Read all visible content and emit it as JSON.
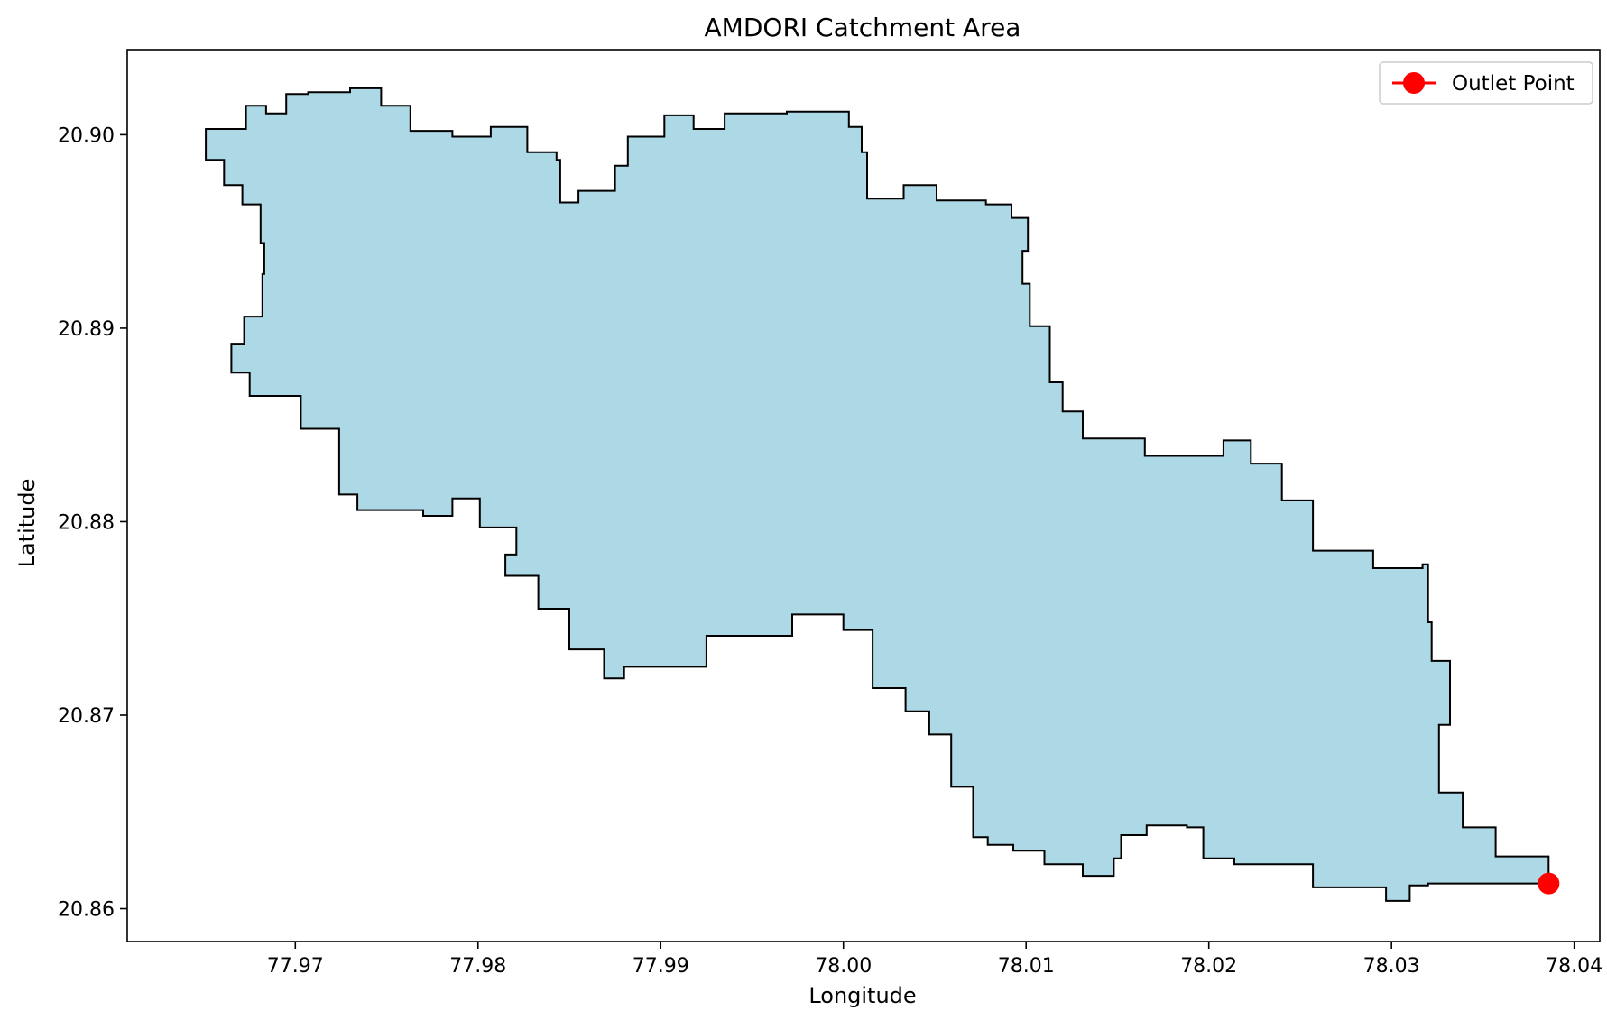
{
  "chart_data": {
    "type": "area",
    "title": "AMDORI Catchment Area",
    "xlabel": "Longitude",
    "ylabel": "Latitude",
    "xlim": [
      77.9608,
      78.0414
    ],
    "ylim": [
      20.8583,
      20.9044
    ],
    "x_ticks": [
      77.97,
      77.98,
      77.99,
      78.0,
      78.01,
      78.02,
      78.03,
      78.04
    ],
    "x_tick_labels": [
      "77.97",
      "77.98",
      "77.99",
      "78.00",
      "78.01",
      "78.02",
      "78.03",
      "78.04"
    ],
    "y_ticks": [
      20.86,
      20.87,
      20.88,
      20.89,
      20.9
    ],
    "y_tick_labels": [
      "20.86",
      "20.87",
      "20.88",
      "20.89",
      "20.90"
    ],
    "grid": false,
    "legend_position": "top-right",
    "colors": {
      "fill": "#add8e6",
      "outline": "#000000",
      "outlet": "#ff0000"
    },
    "series": [
      {
        "kind": "polygon",
        "points": [
          [
            77.9651,
            20.9003
          ],
          [
            77.9673,
            20.9015
          ],
          [
            77.9684,
            20.9011
          ],
          [
            77.9695,
            20.9021
          ],
          [
            77.9707,
            20.9022
          ],
          [
            77.973,
            20.9024
          ],
          [
            77.9747,
            20.9015
          ],
          [
            77.9763,
            20.9002
          ],
          [
            77.9786,
            20.8999
          ],
          [
            77.9807,
            20.9004
          ],
          [
            77.9827,
            20.8991
          ],
          [
            77.9843,
            20.8987
          ],
          [
            77.9845,
            20.8965
          ],
          [
            77.9855,
            20.8971
          ],
          [
            77.9875,
            20.8984
          ],
          [
            77.9882,
            20.8999
          ],
          [
            77.9902,
            20.901
          ],
          [
            77.9918,
            20.9003
          ],
          [
            77.9935,
            20.9011
          ],
          [
            77.9969,
            20.9012
          ],
          [
            78.0003,
            20.9004
          ],
          [
            78.001,
            20.8991
          ],
          [
            78.0013,
            20.8967
          ],
          [
            78.0033,
            20.8974
          ],
          [
            78.0051,
            20.8966
          ],
          [
            78.0078,
            20.8964
          ],
          [
            78.0092,
            20.8957
          ],
          [
            78.0101,
            20.894
          ],
          [
            78.0098,
            20.8923
          ],
          [
            78.0102,
            20.8901
          ],
          [
            78.0113,
            20.8872
          ],
          [
            78.012,
            20.8857
          ],
          [
            78.0131,
            20.8843
          ],
          [
            78.0165,
            20.8834
          ],
          [
            78.0208,
            20.8842
          ],
          [
            78.0223,
            20.883
          ],
          [
            78.024,
            20.8811
          ],
          [
            78.0257,
            20.8785
          ],
          [
            78.029,
            20.8776
          ],
          [
            78.0317,
            20.8778
          ],
          [
            78.032,
            20.8748
          ],
          [
            78.0322,
            20.8728
          ],
          [
            78.0332,
            20.8695
          ],
          [
            78.0326,
            20.866
          ],
          [
            78.0339,
            20.8642
          ],
          [
            78.0357,
            20.8627
          ],
          [
            78.0386,
            20.8613
          ],
          [
            78.032,
            20.8612
          ],
          [
            78.031,
            20.8604
          ],
          [
            78.0297,
            20.8611
          ],
          [
            78.0257,
            20.8623
          ],
          [
            78.0237,
            20.8623
          ],
          [
            78.0214,
            20.8626
          ],
          [
            78.0197,
            20.8642
          ],
          [
            78.0188,
            20.8643
          ],
          [
            78.0166,
            20.8638
          ],
          [
            78.0152,
            20.8626
          ],
          [
            78.0148,
            20.8617
          ],
          [
            78.0131,
            20.8623
          ],
          [
            78.011,
            20.863
          ],
          [
            78.0093,
            20.8633
          ],
          [
            78.0079,
            20.8637
          ],
          [
            78.0071,
            20.8663
          ],
          [
            78.0059,
            20.869
          ],
          [
            78.0047,
            20.8702
          ],
          [
            78.0034,
            20.8714
          ],
          [
            78.0016,
            20.8744
          ],
          [
            78.0,
            20.8752
          ],
          [
            77.9972,
            20.8741
          ],
          [
            77.9925,
            20.8725
          ],
          [
            77.988,
            20.8719
          ],
          [
            77.9869,
            20.8734
          ],
          [
            77.985,
            20.8755
          ],
          [
            77.9833,
            20.8772
          ],
          [
            77.9815,
            20.8783
          ],
          [
            77.9821,
            20.8797
          ],
          [
            77.9801,
            20.8812
          ],
          [
            77.9786,
            20.8803
          ],
          [
            77.977,
            20.8806
          ],
          [
            77.9742,
            20.8806
          ],
          [
            77.9734,
            20.8814
          ],
          [
            77.9724,
            20.8848
          ],
          [
            77.9703,
            20.8865
          ],
          [
            77.9675,
            20.8877
          ],
          [
            77.9665,
            20.8892
          ],
          [
            77.9672,
            20.8906
          ],
          [
            77.9682,
            20.8928
          ],
          [
            77.9683,
            20.8944
          ],
          [
            77.9681,
            20.8964
          ],
          [
            77.9671,
            20.8974
          ],
          [
            77.9661,
            20.8987
          ]
        ]
      },
      {
        "name": "Outlet Point",
        "kind": "point",
        "x": [
          78.0386
        ],
        "y": [
          20.8613
        ]
      }
    ]
  }
}
